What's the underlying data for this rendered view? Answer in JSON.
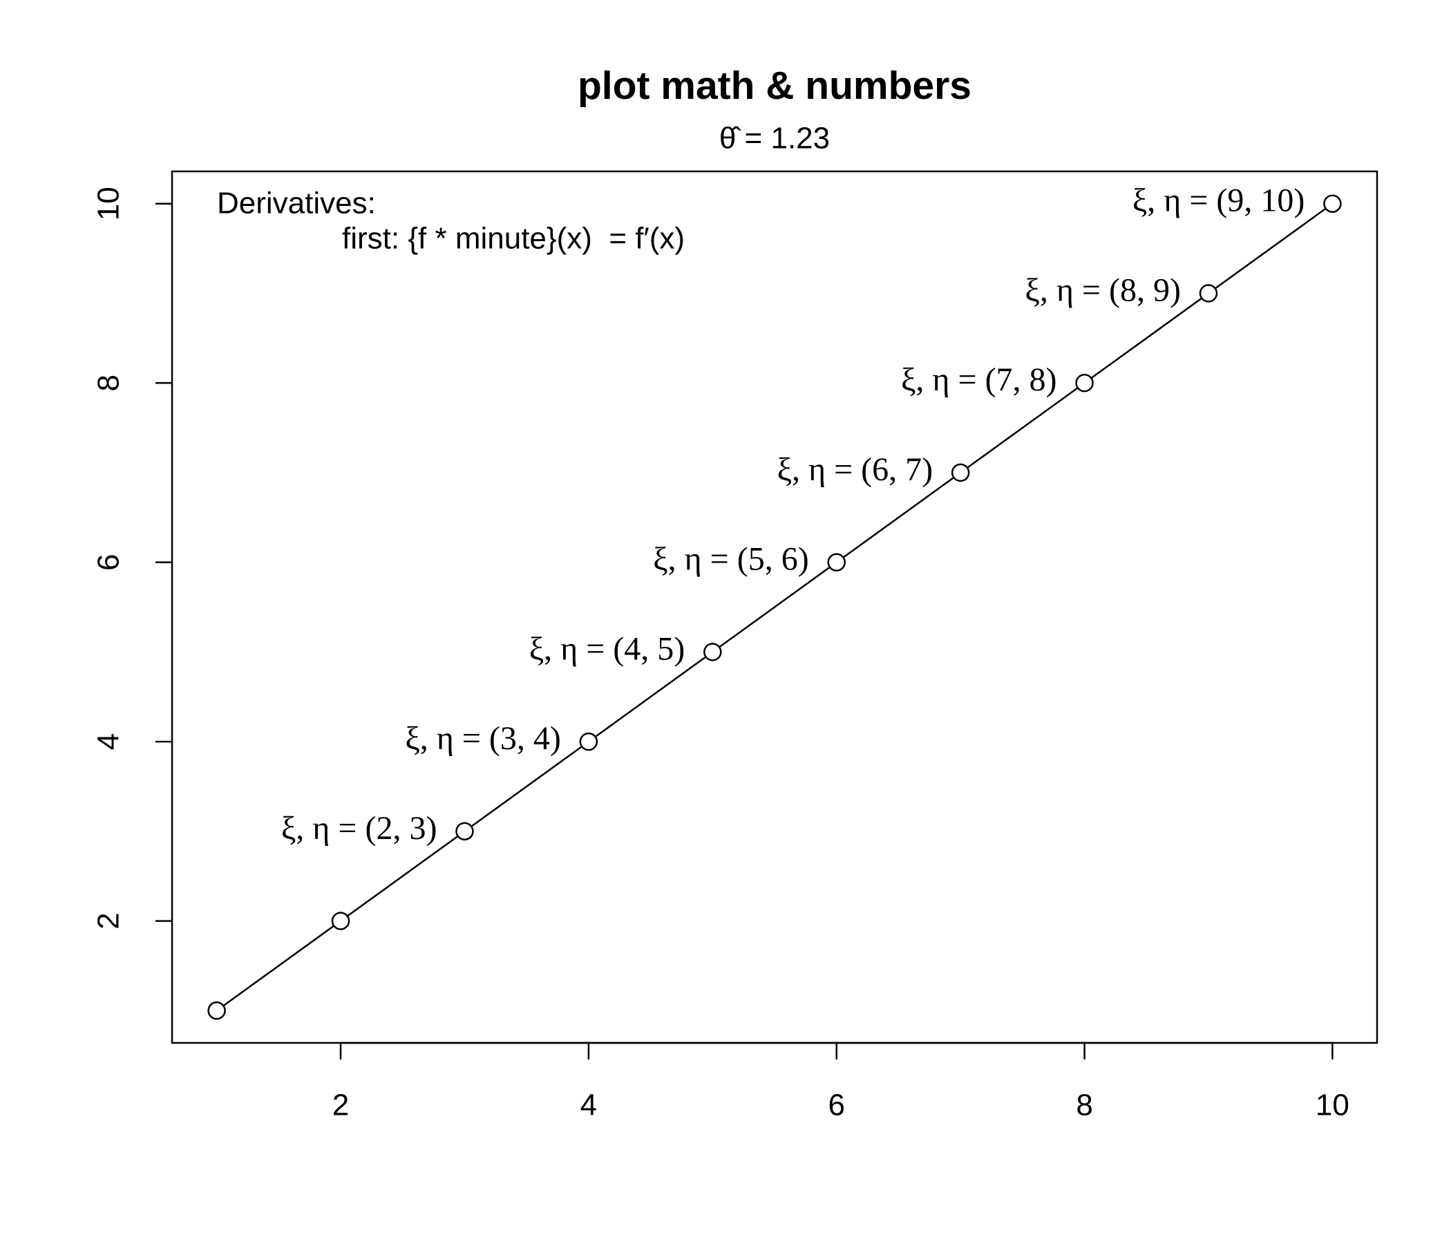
{
  "chart_data": {
    "type": "line",
    "title": "plot math & numbers",
    "subtitle": "θ̂ = 1.23",
    "text_block": [
      "Derivatives:",
      "first: {f * minute}(x)  = f′(x)"
    ],
    "annotations": [
      "ξ, η = (2, 3)",
      "ξ, η = (3, 4)",
      "ξ, η = (4, 5)",
      "ξ, η = (5, 6)",
      "ξ, η = (6, 7)",
      "ξ, η = (7, 8)",
      "ξ, η = (8, 9)",
      "ξ, η = (9, 10)"
    ],
    "x": [
      1,
      2,
      3,
      4,
      5,
      6,
      7,
      8,
      9,
      10
    ],
    "values": [
      1,
      2,
      3,
      4,
      5,
      6,
      7,
      8,
      9,
      10
    ],
    "color": "#000000",
    "marker": "open-circle",
    "xlim": [
      0.64,
      10.36
    ],
    "ylim": [
      0.64,
      10.36
    ],
    "xticks": [
      2,
      4,
      6,
      8,
      10
    ],
    "yticks": [
      2,
      4,
      6,
      8,
      10
    ]
  }
}
